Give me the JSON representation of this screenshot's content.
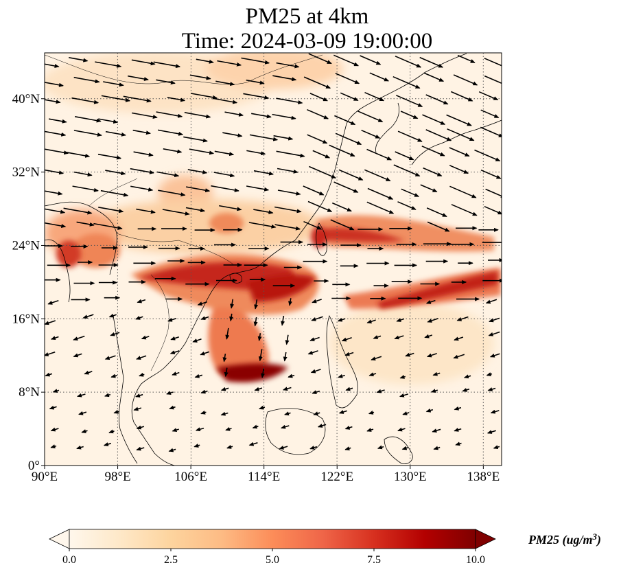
{
  "title": {
    "line1": "PM25 at 4km",
    "line2": "Time: 2024-03-09 19:00:00"
  },
  "map": {
    "projection": "PlateCarree",
    "lon_range": [
      90,
      140
    ],
    "lat_range": [
      0,
      45
    ],
    "x_ticks": [
      {
        "value": 90,
        "label": "90°E"
      },
      {
        "value": 98,
        "label": "98°E"
      },
      {
        "value": 106,
        "label": "106°E"
      },
      {
        "value": 114,
        "label": "114°E"
      },
      {
        "value": 122,
        "label": "122°E"
      },
      {
        "value": 130,
        "label": "130°E"
      },
      {
        "value": 138,
        "label": "138°E"
      }
    ],
    "y_ticks": [
      {
        "value": 0,
        "label": "0°"
      },
      {
        "value": 8,
        "label": "8°N"
      },
      {
        "value": 16,
        "label": "16°N"
      },
      {
        "value": 24,
        "label": "24°N"
      },
      {
        "value": 32,
        "label": "32°N"
      },
      {
        "value": 40,
        "label": "40°N"
      }
    ],
    "gridlines": "dotted",
    "field_variable": "PM25",
    "overlay": "wind vectors",
    "colormap": "OrRd"
  },
  "colorbar": {
    "min": 0.0,
    "max": 10.0,
    "ticks": [
      "0.0",
      "2.5",
      "5.0",
      "7.5",
      "10.0"
    ],
    "tick_values": [
      0.0,
      2.5,
      5.0,
      7.5,
      10.0
    ],
    "extend": "both",
    "label": "PM25 (ug/m",
    "label_sup": "3",
    "label_close": ")",
    "colors": [
      "#fff7ec",
      "#fee8c8",
      "#fdd49e",
      "#fdbb84",
      "#fc8d59",
      "#ef6548",
      "#d7301f",
      "#b30000",
      "#7f0000"
    ]
  }
}
